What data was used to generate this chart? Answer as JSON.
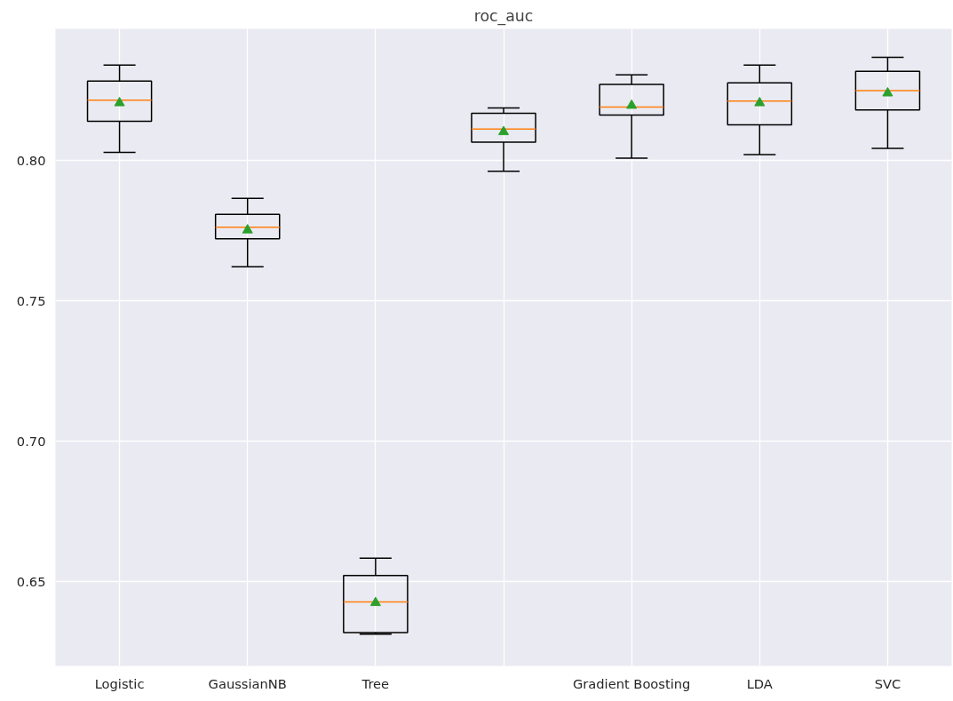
{
  "chart_data": {
    "type": "box",
    "title": "roc_auc",
    "categories": [
      "Logistic",
      "GaussianNB",
      "Tree",
      null,
      "Gradient Boosting",
      "LDA",
      "SVC"
    ],
    "boxes": [
      {
        "low": 0.803,
        "q1": 0.8141,
        "median": 0.8216,
        "q3": 0.8284,
        "high": 0.8341,
        "mean": 0.8206
      },
      {
        "low": 0.7622,
        "q1": 0.7722,
        "median": 0.7763,
        "q3": 0.7809,
        "high": 0.7866,
        "mean": 0.7753
      },
      {
        "low": 0.6313,
        "q1": 0.6319,
        "median": 0.6428,
        "q3": 0.6522,
        "high": 0.6584,
        "mean": 0.6425
      },
      {
        "low": 0.7963,
        "q1": 0.8066,
        "median": 0.8113,
        "q3": 0.8169,
        "high": 0.8188,
        "mean": 0.8103
      },
      {
        "low": 0.8009,
        "q1": 0.8163,
        "median": 0.8191,
        "q3": 0.8272,
        "high": 0.8306,
        "mean": 0.8197
      },
      {
        "low": 0.8022,
        "q1": 0.8128,
        "median": 0.8213,
        "q3": 0.8278,
        "high": 0.8341,
        "mean": 0.8206
      },
      {
        "low": 0.8044,
        "q1": 0.8181,
        "median": 0.825,
        "q3": 0.8319,
        "high": 0.8369,
        "mean": 0.8241
      }
    ],
    "ylim": [
      0.62,
      0.847
    ],
    "yticks": [
      {
        "value": 0.65,
        "label": "0.65"
      },
      {
        "value": 0.7,
        "label": "0.70"
      },
      {
        "value": 0.75,
        "label": "0.75"
      },
      {
        "value": 0.8,
        "label": "0.80"
      }
    ],
    "grid": true
  }
}
